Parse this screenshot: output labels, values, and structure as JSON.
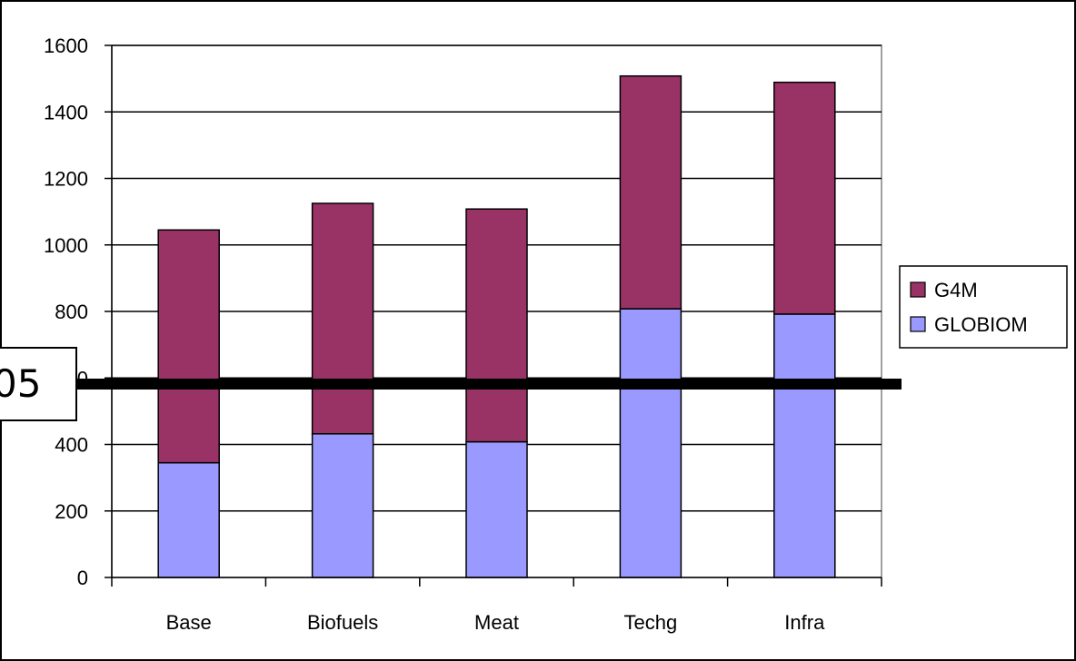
{
  "chart_data": {
    "type": "bar",
    "stacked": true,
    "categories": [
      "Base",
      "Biofuels",
      "Meat",
      "Techg",
      "Infra"
    ],
    "series": [
      {
        "name": "GLOBIOM",
        "color": "#9999ff",
        "values": [
          345,
          432,
          408,
          808,
          792
        ]
      },
      {
        "name": "G4M",
        "color": "#993366",
        "values": [
          700,
          693,
          700,
          700,
          697
        ]
      }
    ],
    "ylim": [
      0,
      1600
    ],
    "yticks": [
      0,
      200,
      400,
      600,
      800,
      1000,
      1200,
      1400,
      1600
    ],
    "grid": true,
    "legend_position": "right",
    "legend_order": [
      "G4M",
      "GLOBIOM"
    ]
  },
  "overlay": {
    "label": "05"
  }
}
